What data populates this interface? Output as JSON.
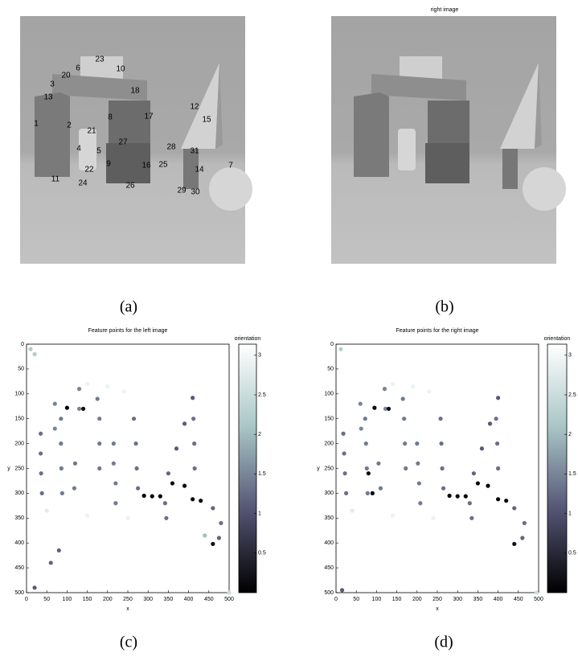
{
  "left_image": {
    "labels": [
      "23",
      "10",
      "6",
      "20",
      "18",
      "3",
      "13",
      "12",
      "8",
      "17",
      "15",
      "1",
      "2",
      "21",
      "27",
      "28",
      "31",
      "4",
      "5",
      "9",
      "16",
      "25",
      "7",
      "22",
      "14",
      "11",
      "24",
      "26",
      "29",
      "30"
    ]
  },
  "right_image": {
    "title": "right image"
  },
  "captions": [
    "(a)",
    "(b)",
    "(c)",
    "(d)"
  ],
  "chart_data": [
    {
      "type": "scatter",
      "title": "Feature points for the left image",
      "xlabel": "x",
      "ylabel": "y",
      "xlim": [
        0,
        500
      ],
      "ylim": [
        0,
        500
      ],
      "y_reversed": true,
      "xticks": [
        0,
        50,
        100,
        150,
        200,
        250,
        300,
        350,
        400,
        450,
        500
      ],
      "yticks": [
        0,
        50,
        100,
        150,
        200,
        250,
        300,
        350,
        400,
        450,
        500
      ],
      "series": [
        {
          "x": [
            35,
            35,
            36,
            38,
            85,
            85,
            86,
            88,
            70,
            70,
            130,
            130,
            175,
            180,
            180,
            180,
            150,
            200,
            240,
            100,
            140,
            215,
            215,
            220,
            220,
            120,
            118,
            265,
            270,
            272,
            275,
            290,
            310,
            330,
            410,
            390,
            370,
            350,
            412,
            414,
            415,
            360,
            390,
            410,
            430,
            342,
            345,
            460,
            480,
            475,
            460,
            50,
            150,
            250,
            60,
            80,
            20,
            10,
            20,
            440,
            500
          ],
          "y": [
            180,
            220,
            260,
            300,
            150,
            200,
            250,
            300,
            120,
            170,
            90,
            130,
            110,
            150,
            200,
            250,
            80,
            85,
            95,
            128,
            130,
            200,
            240,
            280,
            320,
            240,
            290,
            150,
            200,
            250,
            290,
            305,
            306,
            306,
            108,
            160,
            210,
            260,
            150,
            200,
            250,
            280,
            285,
            312,
            315,
            320,
            350,
            330,
            360,
            390,
            402,
            335,
            345,
            350,
            440,
            415,
            490,
            10,
            20,
            385,
            500
          ],
          "c": [
            1.3,
            1.3,
            1.3,
            1.3,
            1.4,
            1.4,
            1.4,
            1.4,
            1.5,
            1.5,
            1.5,
            1.5,
            1.4,
            1.4,
            1.4,
            1.4,
            2.9,
            2.9,
            2.9,
            0.1,
            0.2,
            1.4,
            1.4,
            1.4,
            1.4,
            1.4,
            1.4,
            1.3,
            1.3,
            1.3,
            1.3,
            0.1,
            0.1,
            0.1,
            1.1,
            1.1,
            1.1,
            1.2,
            1.3,
            1.3,
            1.3,
            0.1,
            0.1,
            0.1,
            0.1,
            1.3,
            1.3,
            1.2,
            1.3,
            1.2,
            0.2,
            2.8,
            2.9,
            2.9,
            1.2,
            1.2,
            1.1,
            2.2,
            2.2,
            2.0,
            2.5
          ]
        }
      ],
      "colorbar": {
        "label": "orientation",
        "lim": [
          0,
          3.14
        ],
        "ticks": [
          0.5,
          1,
          1.5,
          2,
          2.5,
          3
        ],
        "colormap": [
          "#000000",
          "#545474",
          "#a8c6c6",
          "#ffffff"
        ]
      }
    },
    {
      "type": "scatter",
      "title": "Feature points for the right image",
      "xlabel": "x",
      "ylabel": "y",
      "xlim": [
        0,
        500
      ],
      "ylim": [
        0,
        500
      ],
      "y_reversed": true,
      "xticks": [
        0,
        50,
        100,
        150,
        200,
        250,
        300,
        350,
        400,
        450,
        500
      ],
      "yticks": [
        0,
        50,
        100,
        150,
        200,
        250,
        300,
        350,
        400,
        450,
        500
      ],
      "series": [
        {
          "x": [
            18,
            20,
            22,
            25,
            72,
            74,
            76,
            78,
            60,
            62,
            120,
            122,
            165,
            168,
            170,
            172,
            140,
            190,
            230,
            95,
            130,
            200,
            202,
            205,
            208,
            105,
            110,
            258,
            260,
            262,
            265,
            280,
            300,
            320,
            400,
            380,
            360,
            340,
            395,
            398,
            400,
            350,
            375,
            400,
            420,
            330,
            335,
            440,
            465,
            460,
            440,
            40,
            140,
            240,
            80,
            90,
            15,
            12,
            495
          ],
          "y": [
            180,
            220,
            260,
            300,
            150,
            200,
            250,
            300,
            120,
            170,
            90,
            130,
            110,
            150,
            200,
            250,
            80,
            85,
            95,
            128,
            130,
            200,
            240,
            280,
            320,
            240,
            290,
            150,
            200,
            250,
            290,
            305,
            306,
            306,
            108,
            160,
            210,
            260,
            150,
            200,
            250,
            280,
            285,
            312,
            315,
            320,
            350,
            330,
            360,
            390,
            402,
            335,
            345,
            350,
            260,
            300,
            495,
            10,
            500
          ],
          "c": [
            1.3,
            1.3,
            1.3,
            1.3,
            1.4,
            1.4,
            1.4,
            1.4,
            1.5,
            1.5,
            1.5,
            1.5,
            1.4,
            1.4,
            1.4,
            1.4,
            2.9,
            2.9,
            2.9,
            0.1,
            0.2,
            1.4,
            1.4,
            1.4,
            1.4,
            1.4,
            1.4,
            1.3,
            1.3,
            1.3,
            1.3,
            0.1,
            0.1,
            0.1,
            1.1,
            1.1,
            1.1,
            1.2,
            1.3,
            1.3,
            1.3,
            0.1,
            0.1,
            0.1,
            0.1,
            1.3,
            1.3,
            1.2,
            1.3,
            1.2,
            0.2,
            2.8,
            2.9,
            2.9,
            0.1,
            0.1,
            1.1,
            2.2,
            2.5
          ]
        }
      ],
      "colorbar": {
        "label": "orientation",
        "lim": [
          0,
          3.14
        ],
        "ticks": [
          0.5,
          1,
          1.5,
          2,
          2.5,
          3
        ],
        "colormap": [
          "#000000",
          "#545474",
          "#a8c6c6",
          "#ffffff"
        ]
      }
    }
  ]
}
